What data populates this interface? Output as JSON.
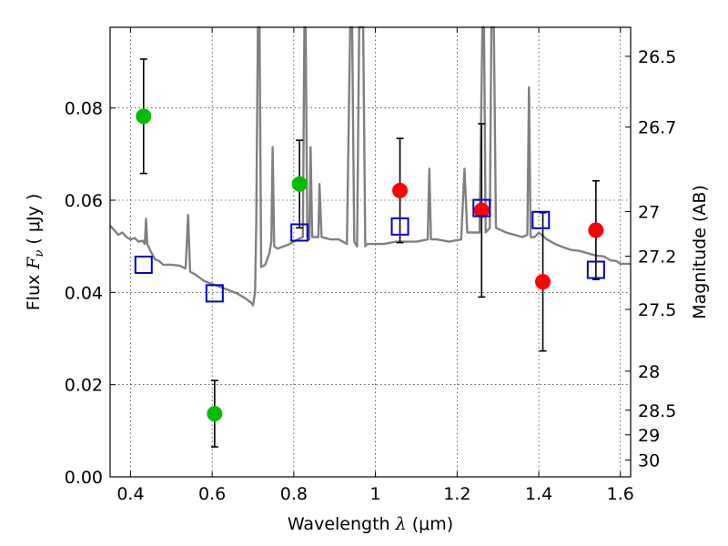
{
  "chart_data": {
    "type": "scatter",
    "title": "",
    "xlabel": {
      "prefix": "Wavelength  ",
      "symbol": "λ",
      "suffix": " (μm)"
    },
    "ylabel": {
      "prefix": "Flux  ",
      "symbol": "F",
      "sub": "ν",
      "suffix": "  ( μJy )"
    },
    "y2label": "Magnitude (AB)",
    "xlim": [
      0.35,
      1.625
    ],
    "ylim": [
      0.0,
      0.0975
    ],
    "grid": true,
    "x_ticks": [
      {
        "v": 0.4,
        "label": "0.4"
      },
      {
        "v": 0.6,
        "label": "0.6"
      },
      {
        "v": 0.8,
        "label": "0.8"
      },
      {
        "v": 1.0,
        "label": "1"
      },
      {
        "v": 1.2,
        "label": "1.2"
      },
      {
        "v": 1.4,
        "label": "1.4"
      },
      {
        "v": 1.6,
        "label": "1.6"
      }
    ],
    "y_ticks": [
      {
        "v": 0.0,
        "label": "0.00"
      },
      {
        "v": 0.02,
        "label": "0.02"
      },
      {
        "v": 0.04,
        "label": "0.04"
      },
      {
        "v": 0.06,
        "label": "0.06"
      },
      {
        "v": 0.08,
        "label": "0.08"
      }
    ],
    "y2_ticks": [
      {
        "v": 26.5,
        "label": "26.5"
      },
      {
        "v": 26.7,
        "label": "26.7"
      },
      {
        "v": 27.0,
        "label": "27"
      },
      {
        "v": 27.2,
        "label": "27.2"
      },
      {
        "v": 27.5,
        "label": "27.5"
      },
      {
        "v": 28.0,
        "label": "28"
      },
      {
        "v": 28.5,
        "label": "28.5"
      },
      {
        "v": 29.0,
        "label": "29"
      },
      {
        "v": 30.0,
        "label": "30"
      }
    ],
    "colors": {
      "spectrum": "#808080",
      "green": "#00bf00",
      "red": "#ff0000",
      "model": "#0000cc",
      "errorbar": "#000000"
    },
    "series": [
      {
        "marker": "circle",
        "color": "#00bf00",
        "points": [
          {
            "x": 0.432,
            "y": 0.0782,
            "err_low": 0.0124,
            "err_high": 0.0124
          },
          {
            "x": 0.606,
            "y": 0.0137,
            "err_low": 0.0072,
            "err_high": 0.0072
          },
          {
            "x": 0.814,
            "y": 0.0635,
            "err_low": 0.0095,
            "err_high": 0.0095
          }
        ]
      },
      {
        "marker": "circle",
        "color": "#ff0000",
        "points": [
          {
            "x": 1.06,
            "y": 0.0621,
            "err_low": 0.0113,
            "err_high": 0.0113
          },
          {
            "x": 1.26,
            "y": 0.0578,
            "err_low": 0.0188,
            "err_high": 0.0188
          },
          {
            "x": 1.41,
            "y": 0.0423,
            "err_low": 0.015,
            "err_high": 0.015
          },
          {
            "x": 1.54,
            "y": 0.0535,
            "err_low": 0.0107,
            "err_high": 0.0107
          }
        ]
      },
      {
        "marker": "open-square",
        "color": "#0000cc",
        "points": [
          {
            "x": 0.432,
            "y": 0.046
          },
          {
            "x": 0.606,
            "y": 0.0398
          },
          {
            "x": 0.814,
            "y": 0.053
          },
          {
            "x": 1.06,
            "y": 0.0543
          },
          {
            "x": 1.26,
            "y": 0.0583
          },
          {
            "x": 1.405,
            "y": 0.0557
          },
          {
            "x": 1.54,
            "y": 0.0449
          }
        ]
      }
    ],
    "spectrum": [
      [
        0.35,
        0.0545
      ],
      [
        0.36,
        0.0535
      ],
      [
        0.37,
        0.0525
      ],
      [
        0.38,
        0.053
      ],
      [
        0.39,
        0.052
      ],
      [
        0.4,
        0.0515
      ],
      [
        0.41,
        0.0518
      ],
      [
        0.42,
        0.051
      ],
      [
        0.43,
        0.0512
      ],
      [
        0.435,
        0.0505
      ],
      [
        0.438,
        0.056
      ],
      [
        0.441,
        0.0505
      ],
      [
        0.45,
        0.0488
      ],
      [
        0.46,
        0.0472
      ],
      [
        0.47,
        0.0468
      ],
      [
        0.48,
        0.046
      ],
      [
        0.5,
        0.046
      ],
      [
        0.52,
        0.0458
      ],
      [
        0.535,
        0.0452
      ],
      [
        0.541,
        0.0568
      ],
      [
        0.546,
        0.0445
      ],
      [
        0.56,
        0.0438
      ],
      [
        0.58,
        0.0425
      ],
      [
        0.6,
        0.0418
      ],
      [
        0.62,
        0.0412
      ],
      [
        0.64,
        0.0405
      ],
      [
        0.66,
        0.0398
      ],
      [
        0.68,
        0.0388
      ],
      [
        0.695,
        0.0378
      ],
      [
        0.7,
        0.0372
      ],
      [
        0.705,
        0.04
      ],
      [
        0.708,
        0.055
      ],
      [
        0.712,
        0.0975
      ],
      [
        0.716,
        0.0975
      ],
      [
        0.72,
        0.0455
      ],
      [
        0.73,
        0.046
      ],
      [
        0.74,
        0.0485
      ],
      [
        0.745,
        0.051
      ],
      [
        0.748,
        0.0715
      ],
      [
        0.752,
        0.05
      ],
      [
        0.76,
        0.0495
      ],
      [
        0.775,
        0.05
      ],
      [
        0.79,
        0.0505
      ],
      [
        0.8,
        0.051
      ],
      [
        0.81,
        0.0515
      ],
      [
        0.822,
        0.052
      ],
      [
        0.826,
        0.0975
      ],
      [
        0.829,
        0.0975
      ],
      [
        0.833,
        0.052
      ],
      [
        0.838,
        0.0515
      ],
      [
        0.841,
        0.0715
      ],
      [
        0.845,
        0.052
      ],
      [
        0.86,
        0.052
      ],
      [
        0.863,
        0.0635
      ],
      [
        0.868,
        0.052
      ],
      [
        0.89,
        0.0515
      ],
      [
        0.91,
        0.0515
      ],
      [
        0.93,
        0.0505
      ],
      [
        0.938,
        0.0975
      ],
      [
        0.943,
        0.0975
      ],
      [
        0.948,
        0.051
      ],
      [
        0.955,
        0.05
      ],
      [
        0.96,
        0.0975
      ],
      [
        0.97,
        0.0975
      ],
      [
        0.975,
        0.05
      ],
      [
        0.98,
        0.0505
      ],
      [
        1.0,
        0.0505
      ],
      [
        1.02,
        0.0505
      ],
      [
        1.05,
        0.051
      ],
      [
        1.1,
        0.051
      ],
      [
        1.128,
        0.0515
      ],
      [
        1.132,
        0.0668
      ],
      [
        1.136,
        0.0515
      ],
      [
        1.15,
        0.0515
      ],
      [
        1.18,
        0.051
      ],
      [
        1.21,
        0.0515
      ],
      [
        1.218,
        0.0668
      ],
      [
        1.225,
        0.053
      ],
      [
        1.24,
        0.053
      ],
      [
        1.255,
        0.053
      ],
      [
        1.262,
        0.0975
      ],
      [
        1.266,
        0.0975
      ],
      [
        1.27,
        0.053
      ],
      [
        1.28,
        0.054
      ],
      [
        1.284,
        0.0975
      ],
      [
        1.29,
        0.0975
      ],
      [
        1.295,
        0.054
      ],
      [
        1.32,
        0.053
      ],
      [
        1.36,
        0.052
      ],
      [
        1.372,
        0.0525
      ],
      [
        1.376,
        0.0845
      ],
      [
        1.38,
        0.052
      ],
      [
        1.39,
        0.052
      ],
      [
        1.4,
        0.053
      ],
      [
        1.42,
        0.0515
      ],
      [
        1.44,
        0.0505
      ],
      [
        1.46,
        0.0498
      ],
      [
        1.48,
        0.0492
      ],
      [
        1.5,
        0.049
      ],
      [
        1.52,
        0.0485
      ],
      [
        1.54,
        0.048
      ],
      [
        1.56,
        0.0478
      ],
      [
        1.575,
        0.047
      ],
      [
        1.59,
        0.0468
      ],
      [
        1.6,
        0.0462
      ],
      [
        1.625,
        0.0462
      ]
    ]
  }
}
